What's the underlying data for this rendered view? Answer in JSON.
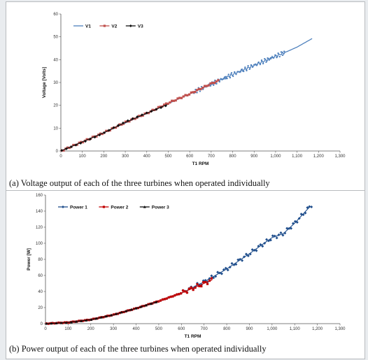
{
  "figure": {
    "caption_a": "(a)  Voltage output of each of the three turbines when operated individually",
    "caption_b": "(b)  Power output of each of the three turbines when operated individually"
  },
  "chart_data": [
    {
      "type": "line",
      "xlabel": "T1 RPM",
      "ylabel": "Voltage [Volts]",
      "xlim": [
        0,
        1300
      ],
      "ylim": [
        0,
        60
      ],
      "xticks": [
        0,
        100,
        200,
        300,
        400,
        500,
        600,
        700,
        800,
        900,
        1000,
        1100,
        1200,
        1300
      ],
      "yticks": [
        0,
        10,
        20,
        30,
        40,
        50,
        60
      ],
      "xtick_labels": [
        "0",
        "100",
        "200",
        "300",
        "400",
        "500",
        "600",
        "700",
        "800",
        "900",
        "1,000",
        "1,100",
        "1,200",
        "1,300"
      ],
      "ytick_labels": [
        "0",
        "10",
        "20",
        "30",
        "40",
        "50",
        "60"
      ],
      "grid": false,
      "legend": "top-left",
      "series": [
        {
          "name": "V1",
          "color": "#4f81bd",
          "marker": "line",
          "x": [
            0,
            200,
            400,
            600,
            800,
            900,
            1000,
            1040,
            1100,
            1175
          ],
          "y": [
            0,
            8,
            16.5,
            25,
            33.5,
            37.5,
            41.5,
            43,
            45.5,
            49.5
          ]
        },
        {
          "name": "V2",
          "color": "#c0504d",
          "marker": "square",
          "x": [
            0,
            100,
            200,
            300,
            400,
            500,
            600,
            700,
            740
          ],
          "y": [
            0,
            4,
            8,
            12.5,
            16.5,
            21,
            25,
            29.5,
            31
          ]
        },
        {
          "name": "V3",
          "color": "#111111",
          "marker": "diamond",
          "x": [
            0,
            100,
            200,
            300,
            400,
            500
          ],
          "y": [
            0,
            4,
            8,
            12.5,
            16.5,
            20.5
          ]
        }
      ]
    },
    {
      "type": "line",
      "xlabel": "T1 RPM",
      "ylabel": "Power [W]",
      "xlim": [
        0,
        1300
      ],
      "ylim": [
        0,
        160
      ],
      "xticks": [
        0,
        100,
        200,
        300,
        400,
        500,
        600,
        700,
        800,
        900,
        1000,
        1100,
        1200,
        1300
      ],
      "yticks": [
        0,
        20,
        40,
        60,
        80,
        100,
        120,
        140,
        160
      ],
      "xtick_labels": [
        "0",
        "100",
        "200",
        "300",
        "400",
        "500",
        "600",
        "700",
        "800",
        "900",
        "1,000",
        "1,100",
        "1,200",
        "1,300"
      ],
      "ytick_labels": [
        "0",
        "20",
        "40",
        "60",
        "80",
        "100",
        "120",
        "140",
        "160"
      ],
      "grid": false,
      "legend": "top-left",
      "series": [
        {
          "name": "Power 1",
          "color": "#1f4e8c",
          "marker": "diamond",
          "x": [
            0,
            100,
            200,
            300,
            400,
            500,
            600,
            700,
            800,
            900,
            1000,
            1050,
            1100,
            1175
          ],
          "y": [
            0,
            1.5,
            5,
            11,
            19,
            28,
            38,
            52,
            68,
            87,
            107,
            112,
            125,
            148
          ]
        },
        {
          "name": "Power 2",
          "color": "#c00000",
          "marker": "square",
          "x": [
            0,
            100,
            200,
            300,
            400,
            500,
            600,
            700,
            740
          ],
          "y": [
            0,
            1.5,
            5,
            11,
            19,
            28,
            38,
            50,
            55
          ]
        },
        {
          "name": "Power 3",
          "color": "#111111",
          "marker": "triangle",
          "x": [
            0,
            100,
            200,
            300,
            400,
            500
          ],
          "y": [
            0,
            1.5,
            5,
            11,
            19,
            28
          ]
        }
      ]
    }
  ]
}
